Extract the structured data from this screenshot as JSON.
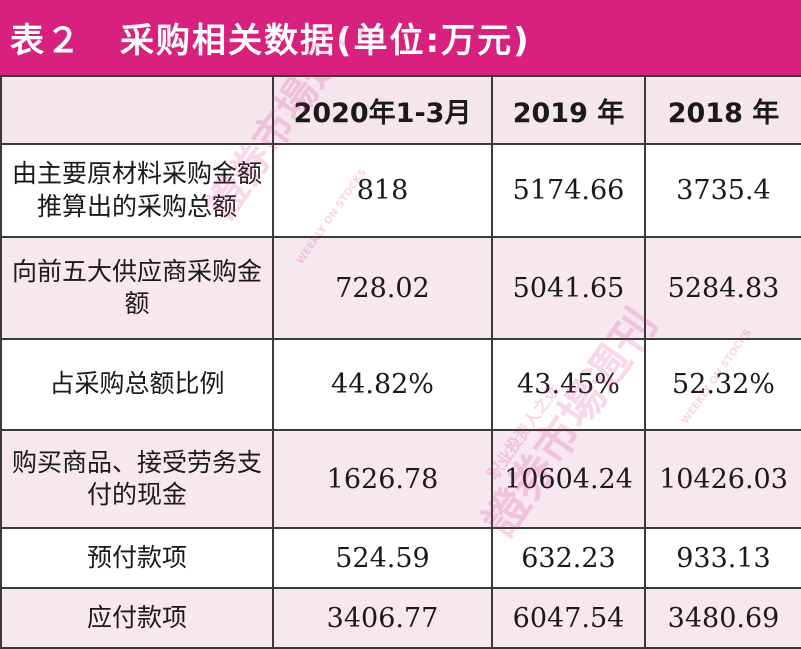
{
  "title": {
    "table_number": "表２",
    "text": "采购相关数据(单位:万元)"
  },
  "table": {
    "columns": [
      "",
      "2020年1-3月",
      "2019 年",
      "2018 年"
    ],
    "rows": [
      {
        "label": "由主要原材料采购金额推算出的采购总额",
        "values": [
          "818",
          "5174.66",
          "3735.4"
        ]
      },
      {
        "label": "向前五大供应商采购金额",
        "values": [
          "728.02",
          "5041.65",
          "5284.83"
        ]
      },
      {
        "label": "占采购总额比例",
        "values": [
          "44.82%",
          "43.45%",
          "52.32%"
        ]
      },
      {
        "label": "购买商品、接受劳务支付的现金",
        "values": [
          "1626.78",
          "10604.24",
          "10426.03"
        ]
      },
      {
        "label": "预付款项",
        "values": [
          "524.59",
          "632.23",
          "933.13"
        ]
      },
      {
        "label": "应付款项",
        "values": [
          "3406.77",
          "6047.54",
          "3480.69"
        ]
      }
    ]
  },
  "watermark": {
    "brand": "證券市場週刊",
    "tagline": "WEEKLY ON STOCKS",
    "slogan": "职业投资人之选"
  }
}
